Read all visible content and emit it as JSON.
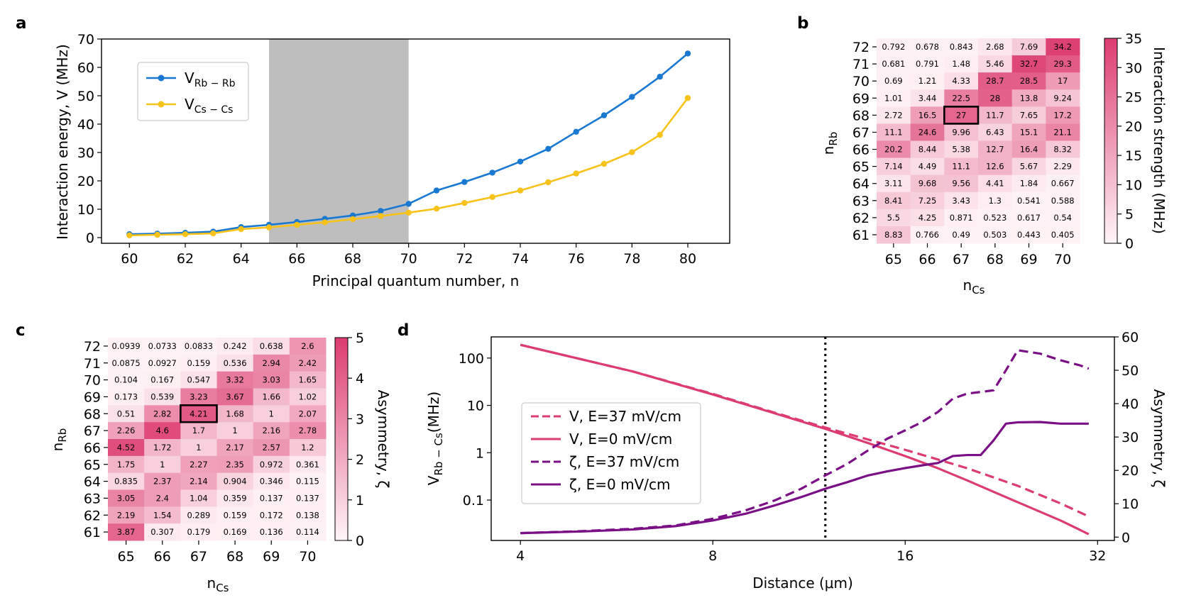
{
  "panels": {
    "a": "a",
    "b": "b",
    "c": "c",
    "d": "d"
  },
  "colors": {
    "rb": "#1878d2",
    "cs": "#f7c21a",
    "shade": "#bebebe",
    "heat_hi": "#dc3c70",
    "v_line": "#dc3c70",
    "zeta_line": "#7a0f86"
  },
  "chart_data": [
    {
      "panel": "a",
      "type": "line",
      "xlabel": "Principal quantum number, n",
      "ylabel": "Interaction energy, V (MHz)",
      "xlim": [
        59,
        81.5
      ],
      "ylim": [
        -2,
        70
      ],
      "xticks": [
        60,
        62,
        64,
        66,
        68,
        70,
        72,
        74,
        76,
        78,
        80
      ],
      "yticks": [
        0,
        10,
        20,
        30,
        40,
        50,
        60,
        70
      ],
      "shaded_region": [
        65,
        70
      ],
      "legend_position": "upper-left",
      "x": [
        60,
        61,
        62,
        63,
        64,
        65,
        66,
        67,
        68,
        69,
        70,
        71,
        72,
        73,
        74,
        75,
        76,
        77,
        78,
        79,
        80
      ],
      "series": [
        {
          "name": "V",
          "sub": "Rb − Rb",
          "values": [
            1.2,
            1.4,
            1.7,
            2.1,
            3.7,
            4.5,
            5.5,
            6.6,
            7.8,
            9.4,
            11.9,
            16.6,
            19.6,
            22.9,
            26.8,
            31.3,
            37.3,
            43.1,
            49.6,
            56.7,
            64.9
          ]
        },
        {
          "name": "V",
          "sub": "Cs − Cs",
          "values": [
            0.8,
            1.0,
            1.2,
            1.5,
            3.0,
            3.6,
            4.5,
            5.4,
            6.5,
            7.6,
            8.8,
            10.2,
            12.2,
            14.3,
            16.6,
            19.5,
            22.6,
            26.0,
            30.1,
            36.2,
            49.2
          ]
        }
      ]
    },
    {
      "panel": "b",
      "type": "heatmap",
      "xlabel": "n",
      "xlabel_sub": "Cs",
      "ylabel": "n",
      "ylabel_sub": "Rb",
      "x_categories": [
        "65",
        "66",
        "67",
        "68",
        "69",
        "70"
      ],
      "y_categories": [
        "72",
        "71",
        "70",
        "69",
        "68",
        "67",
        "66",
        "65",
        "64",
        "63",
        "62",
        "61"
      ],
      "values": [
        [
          "0.792",
          "0.678",
          "0.843",
          "2.68",
          "7.69",
          "34.2"
        ],
        [
          "0.681",
          "0.791",
          "1.48",
          "5.46",
          "32.7",
          "29.3"
        ],
        [
          "0.69",
          "1.21",
          "4.33",
          "28.7",
          "28.5",
          "17"
        ],
        [
          "1.01",
          "3.44",
          "22.5",
          "28",
          "13.8",
          "9.24"
        ],
        [
          "2.72",
          "16.5",
          "27",
          "11.7",
          "7.65",
          "17.2"
        ],
        [
          "11.1",
          "24.6",
          "9.96",
          "6.43",
          "15.1",
          "21.1"
        ],
        [
          "20.2",
          "8.44",
          "5.38",
          "12.7",
          "16.4",
          "8.32"
        ],
        [
          "7.14",
          "4.49",
          "11.1",
          "12.6",
          "5.67",
          "2.29"
        ],
        [
          "3.11",
          "9.68",
          "9.56",
          "4.41",
          "1.84",
          "0.667"
        ],
        [
          "8.41",
          "7.25",
          "3.43",
          "1.3",
          "0.541",
          "0.588"
        ],
        [
          "5.5",
          "4.25",
          "0.871",
          "0.523",
          "0.617",
          "0.54"
        ],
        [
          "8.83",
          "0.766",
          "0.49",
          "0.503",
          "0.443",
          "0.405"
        ]
      ],
      "highlight": {
        "x": "67",
        "y": "68"
      },
      "colorbar": {
        "label": "Interaction strength (MHz)",
        "range": [
          0,
          35
        ],
        "ticks": [
          0,
          5,
          10,
          15,
          20,
          25,
          30,
          35
        ]
      }
    },
    {
      "panel": "c",
      "type": "heatmap",
      "xlabel": "n",
      "xlabel_sub": "Cs",
      "ylabel": "n",
      "ylabel_sub": "Rb",
      "x_categories": [
        "65",
        "66",
        "67",
        "68",
        "69",
        "70"
      ],
      "y_categories": [
        "72",
        "71",
        "70",
        "69",
        "68",
        "67",
        "66",
        "65",
        "64",
        "63",
        "62",
        "61"
      ],
      "values": [
        [
          "0.0939",
          "0.0733",
          "0.0833",
          "0.242",
          "0.638",
          "2.6"
        ],
        [
          "0.0875",
          "0.0927",
          "0.159",
          "0.536",
          "2.94",
          "2.42"
        ],
        [
          "0.104",
          "0.167",
          "0.547",
          "3.32",
          "3.03",
          "1.65"
        ],
        [
          "0.173",
          "0.539",
          "3.23",
          "3.67",
          "1.66",
          "1.02"
        ],
        [
          "0.51",
          "2.82",
          "4.21",
          "1.68",
          "1",
          "2.07"
        ],
        [
          "2.26",
          "4.6",
          "1.7",
          "1",
          "2.16",
          "2.78"
        ],
        [
          "4.52",
          "1.72",
          "1",
          "2.17",
          "2.57",
          "1.2"
        ],
        [
          "1.75",
          "1",
          "2.27",
          "2.35",
          "0.972",
          "0.361"
        ],
        [
          "0.835",
          "2.37",
          "2.14",
          "0.904",
          "0.346",
          "0.115"
        ],
        [
          "3.05",
          "2.4",
          "1.04",
          "0.359",
          "0.137",
          "0.137"
        ],
        [
          "2.19",
          "1.54",
          "0.289",
          "0.159",
          "0.172",
          "0.138"
        ],
        [
          "3.87",
          "0.307",
          "0.179",
          "0.169",
          "0.136",
          "0.114"
        ]
      ],
      "highlight": {
        "x": "67",
        "y": "68"
      },
      "colorbar": {
        "label": "Asymmetry, ζ",
        "range": [
          0,
          5
        ],
        "ticks": [
          0,
          1,
          2,
          3,
          4,
          5
        ]
      }
    },
    {
      "panel": "d",
      "type": "line",
      "xlabel": "Distance (μm)",
      "xscale": "log2",
      "xlim": [
        3.6,
        34
      ],
      "xticks": [
        4,
        8,
        16,
        32
      ],
      "ylabel_left": "V",
      "ylabel_left_sub": "Rb − Cs",
      "ylabel_left_unit": "(MHz)",
      "yscale_left": "log10",
      "ylim_left": [
        0.014,
        280
      ],
      "yticks_left": [
        0.1,
        1,
        10,
        100
      ],
      "ytick_labels_left": [
        "0.1",
        "1",
        "10",
        "100"
      ],
      "ylabel_right": "Asymmetry, ζ",
      "ylim_right": [
        -1,
        60
      ],
      "yticks_right": [
        0,
        10,
        20,
        30,
        40,
        50,
        60
      ],
      "vline_x": 12,
      "legend_position": "center-left",
      "series": [
        {
          "name": "V, E=37 mV/cm",
          "axis": "left",
          "style": "dashed",
          "x": [
            4,
            6,
            8,
            10,
            12,
            14,
            16,
            18,
            20,
            24,
            28,
            31
          ],
          "y": [
            190,
            52,
            17.5,
            7,
            3.4,
            1.9,
            1.15,
            0.72,
            0.47,
            0.2,
            0.085,
            0.045
          ]
        },
        {
          "name": "V, E=0 mV/cm",
          "axis": "left",
          "style": "solid",
          "x": [
            4,
            6,
            8,
            10,
            12,
            14,
            16,
            18,
            20,
            24,
            28,
            31
          ],
          "y": [
            190,
            52,
            17,
            6.8,
            3.2,
            1.6,
            0.85,
            0.47,
            0.26,
            0.09,
            0.037,
            0.019
          ]
        },
        {
          "name": "ζ, E=37 mV/cm",
          "axis": "right",
          "style": "dashed",
          "x": [
            4,
            5,
            6,
            7,
            8,
            9,
            10,
            11,
            12,
            13,
            14,
            15,
            16,
            17,
            18,
            19,
            20,
            21,
            22,
            23,
            24,
            26,
            28,
            30,
            31
          ],
          "y": [
            1.2,
            1.8,
            2.5,
            3.5,
            5.5,
            8,
            11,
            14.5,
            18.5,
            22,
            26,
            29.5,
            32,
            34.5,
            37.5,
            41.5,
            43,
            43.5,
            44,
            50,
            56,
            55,
            53,
            51.5,
            50.5
          ]
        },
        {
          "name": "ζ, E=0 mV/cm",
          "axis": "right",
          "style": "solid",
          "x": [
            4,
            5,
            6,
            7,
            8,
            9,
            10,
            11,
            12,
            13,
            14,
            15,
            16,
            17,
            18,
            19,
            20,
            21,
            22,
            23,
            24,
            26,
            28,
            30,
            31
          ],
          "y": [
            1.2,
            1.7,
            2.3,
            3.3,
            5,
            7,
            9.5,
            12,
            14.5,
            16.5,
            18.5,
            19.7,
            20.7,
            21.5,
            22.2,
            24.3,
            24.6,
            24.6,
            29,
            34,
            34.4,
            34.5,
            34,
            34,
            34
          ]
        }
      ]
    }
  ]
}
